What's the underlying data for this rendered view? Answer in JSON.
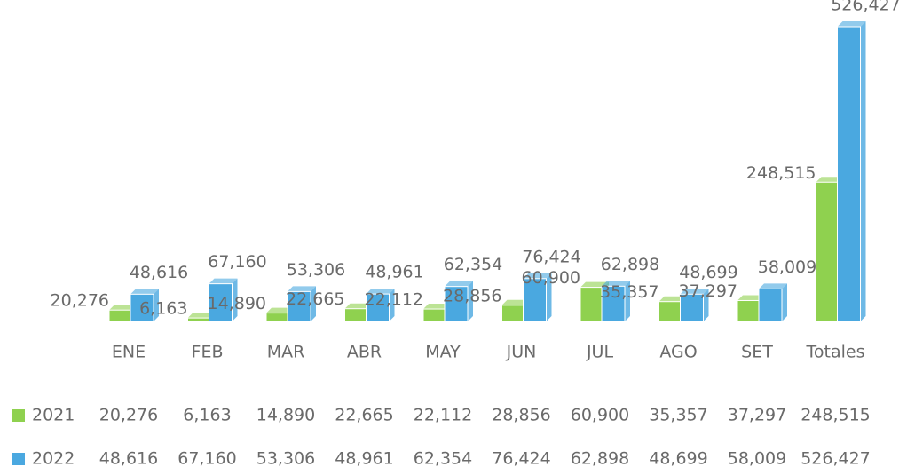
{
  "chart_data": {
    "type": "bar",
    "categories": [
      "ENE",
      "FEB",
      "MAR",
      "ABR",
      "MAY",
      "JUN",
      "JUL",
      "AGO",
      "SET",
      "Totales"
    ],
    "series": [
      {
        "name": "2021",
        "color": "#8fd14f",
        "values": [
          20276,
          6163,
          14890,
          22665,
          22112,
          28856,
          60900,
          35357,
          37297,
          248515
        ],
        "value_labels": [
          "20,276",
          "6,163",
          "14,890",
          "22,665",
          "22,112",
          "28,856",
          "60,900",
          "35,357",
          "37,297",
          "248,515"
        ]
      },
      {
        "name": "2022",
        "color": "#4aa8e0",
        "values": [
          48616,
          67160,
          53306,
          48961,
          62354,
          76424,
          62898,
          48699,
          58009,
          526427
        ],
        "value_labels": [
          "48,616",
          "67,160",
          "53,306",
          "48,961",
          "62,354",
          "76,424",
          "62,898",
          "48,699",
          "58,009",
          "526,427"
        ]
      }
    ]
  }
}
